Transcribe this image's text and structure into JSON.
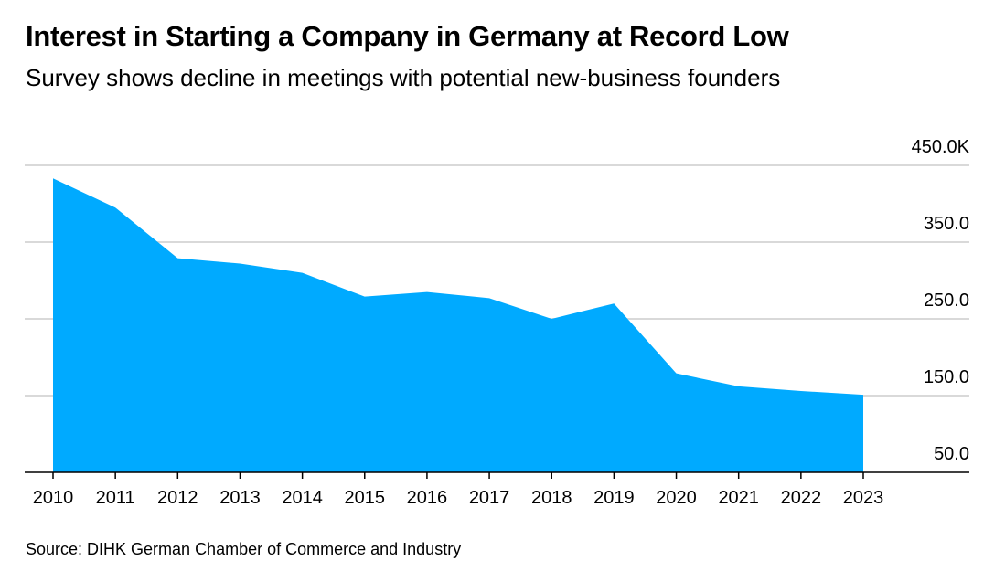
{
  "title": "Interest in Starting a Company in Germany at Record Low",
  "subtitle": "Survey shows decline in meetings with potential new-business founders",
  "source": "Source: DIHK German Chamber of Commerce and Industry",
  "chart_data": {
    "type": "area",
    "title": "Interest in Starting a Company in Germany at Record Low",
    "subtitle": "Survey shows decline in meetings with potential new-business founders",
    "xlabel": "",
    "ylabel": "",
    "x": [
      "2010",
      "2011",
      "2012",
      "2013",
      "2014",
      "2015",
      "2016",
      "2017",
      "2018",
      "2019",
      "2020",
      "2021",
      "2022",
      "2023"
    ],
    "values": [
      433,
      395,
      329,
      322,
      310,
      279,
      285,
      277,
      250,
      270,
      179,
      162,
      156,
      151
    ],
    "units": "thousands",
    "ylim": [
      50,
      450
    ],
    "yticks": [
      450,
      350,
      250,
      150,
      50
    ],
    "ytick_labels": [
      "450.0K",
      "350.0",
      "250.0",
      "150.0",
      "50.0"
    ],
    "grid": true,
    "y_axis_position": "right",
    "color": "#00aaff"
  }
}
